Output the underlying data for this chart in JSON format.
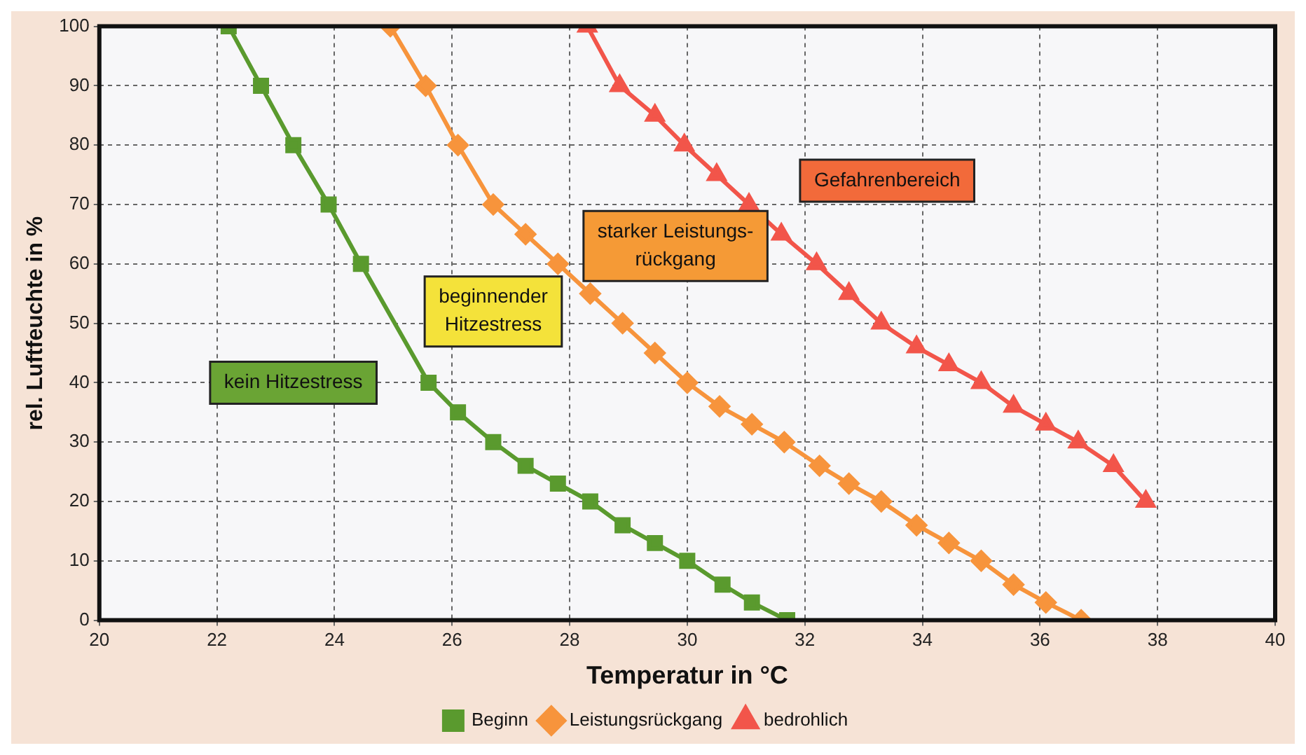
{
  "chart_data": {
    "type": "line",
    "xlabel": "Temperatur in °C",
    "ylabel": "rel. Luftfeuchte in %",
    "xlim": [
      20,
      40
    ],
    "xticks": [
      20,
      22,
      24,
      26,
      28,
      30,
      32,
      34,
      36,
      38,
      40
    ],
    "ylim": [
      0,
      100
    ],
    "yticks": [
      0,
      10,
      20,
      30,
      40,
      50,
      60,
      70,
      80,
      90,
      100
    ],
    "grid": true,
    "legend": "bottom",
    "annotations": [
      "kein Hitzestress",
      "beginnender Hitzestress",
      "starker Leistungs-rückgang",
      "Gefahrenbereich"
    ],
    "series": [
      {
        "name": "Beginn",
        "color": "#5a9a2e",
        "marker": "square",
        "x": [
          22.2,
          22.75,
          23.3,
          23.9,
          24.45,
          25.6,
          26.1,
          26.7,
          27.25,
          27.8,
          28.35,
          28.9,
          29.45,
          30.0,
          30.6,
          31.1,
          31.7
        ],
        "values": [
          100,
          90,
          80,
          70,
          60,
          40,
          35,
          30,
          26,
          23,
          20,
          16,
          13,
          10,
          6,
          3,
          0
        ]
      },
      {
        "name": "Leistungsrückgang",
        "color": "#f7943c",
        "marker": "diamond",
        "x": [
          24.95,
          25.55,
          26.1,
          26.7,
          27.25,
          27.8,
          28.35,
          28.9,
          29.45,
          30.0,
          30.55,
          31.1,
          31.65,
          32.25,
          32.75,
          33.3,
          33.9,
          34.45,
          35.0,
          35.55,
          36.1,
          36.7
        ],
        "values": [
          100,
          90,
          80,
          70,
          65,
          60,
          55,
          50,
          45,
          40,
          36,
          33,
          30,
          26,
          23,
          20,
          16,
          13,
          10,
          6,
          3,
          0
        ]
      },
      {
        "name": "bedrohlich",
        "color": "#f2554a",
        "marker": "triangle",
        "x": [
          28.3,
          28.85,
          29.45,
          29.95,
          30.5,
          31.05,
          31.6,
          32.2,
          32.75,
          33.3,
          33.9,
          34.45,
          35.0,
          35.55,
          36.1,
          36.65,
          37.25,
          37.8
        ],
        "values": [
          100,
          90,
          85,
          80,
          75,
          70,
          65,
          60,
          55,
          50,
          46,
          43,
          40,
          36,
          33,
          30,
          26,
          20
        ]
      }
    ]
  }
}
